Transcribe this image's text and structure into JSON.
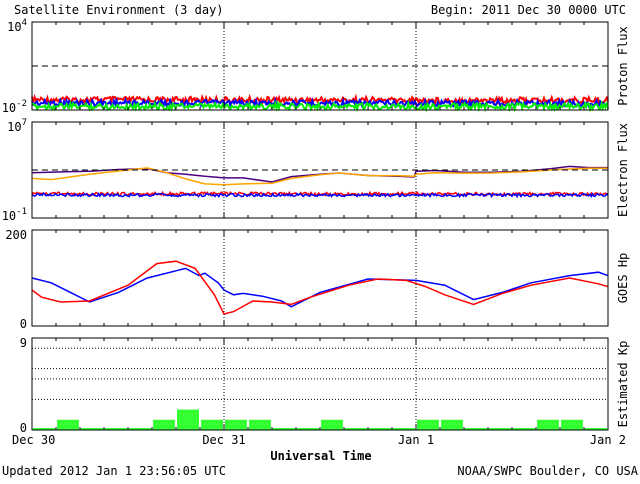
{
  "header": {
    "title": "Satellite Environment (3 day)",
    "begin": "Begin:  2011 Dec 30 0000 UTC"
  },
  "footer": {
    "updated": "Updated 2012 Jan  1 23:56:05 UTC",
    "credit": "NOAA/SWPC Boulder, CO USA"
  },
  "x_axis": {
    "label": "Universal Time",
    "days": 3,
    "ticks": [
      {
        "day": 0,
        "label": "Dec 30"
      },
      {
        "day": 1,
        "label": "Dec 31"
      },
      {
        "day": 2,
        "label": "Jan 1"
      },
      {
        "day": 3,
        "label": "Jan 2"
      }
    ]
  },
  "colors": {
    "red": "#ff0000",
    "blue": "#0000ff",
    "green": "#00ee00",
    "purple": "#4b0082",
    "orange": "#ffa500",
    "kp": "#33ff33"
  },
  "chart_data": [
    {
      "type": "line",
      "ylabel": "Proton Flux",
      "scale": "log",
      "ylim": [
        0.01,
        10000
      ],
      "ticks": [
        {
          "value": 10000,
          "label": "10",
          "exp": "4"
        },
        {
          "value": 0.01,
          "label": "10",
          "exp": "-2"
        }
      ],
      "threshold": 10,
      "series": [
        {
          "color": "red",
          "x": [
            0,
            0.5,
            1,
            1.5,
            2,
            2.5,
            3
          ],
          "y": [
            0.05,
            0.05,
            0.048,
            0.048,
            0.047,
            0.046,
            0.046
          ]
        },
        {
          "color": "blue",
          "x": [
            0,
            0.5,
            1,
            1.5,
            2,
            2.5,
            3
          ],
          "y": [
            0.03,
            0.03,
            0.03,
            0.029,
            0.029,
            0.029,
            0.028
          ]
        },
        {
          "color": "green",
          "x": [
            0,
            0.5,
            1,
            1.5,
            2,
            2.5,
            3
          ],
          "y": [
            0.018,
            0.018,
            0.018,
            0.018,
            0.018,
            0.018,
            0.018
          ]
        }
      ]
    },
    {
      "type": "line",
      "ylabel": "Electron Flux",
      "scale": "log",
      "ylim": [
        0.1,
        10000000
      ],
      "ticks": [
        {
          "value": 10000000,
          "label": "10",
          "exp": "7"
        },
        {
          "value": 0.1,
          "label": "10",
          "exp": "-1"
        }
      ],
      "threshold": 1000,
      "series": [
        {
          "color": "purple",
          "x": [
            0,
            0.15,
            0.3,
            0.45,
            0.6,
            0.7,
            0.8,
            0.9,
            1.0,
            1.1,
            1.25,
            1.35,
            1.5,
            1.6,
            1.75,
            1.9,
            1.99,
            2.0,
            2.1,
            2.25,
            2.4,
            2.55,
            2.7,
            2.8,
            2.9,
            3.0
          ],
          "y": [
            600,
            700,
            800,
            1100,
            1300,
            600,
            450,
            300,
            220,
            220,
            100,
            280,
            450,
            560,
            350,
            300,
            260,
            800,
            900,
            640,
            640,
            800,
            1250,
            2000,
            1600,
            1600
          ]
        },
        {
          "color": "orange",
          "x": [
            0,
            0.1,
            0.3,
            0.5,
            0.6,
            0.7,
            0.8,
            0.9,
            1.0,
            1.1,
            1.25,
            1.35,
            1.5,
            1.6,
            1.75,
            1.9,
            1.99,
            2.0,
            2.1,
            2.25,
            2.4,
            2.55,
            2.7,
            2.8,
            2.9,
            3.0
          ],
          "y": [
            200,
            160,
            450,
            1000,
            1500,
            600,
            180,
            70,
            60,
            70,
            80,
            200,
            400,
            560,
            340,
            340,
            300,
            450,
            600,
            550,
            560,
            700,
            1000,
            1200,
            1400,
            1400
          ]
        },
        {
          "color": "red",
          "x": [
            0,
            0.5,
            1,
            1.5,
            2,
            2.5,
            3
          ],
          "y": [
            11,
            10,
            11,
            10,
            11,
            10,
            10
          ]
        },
        {
          "color": "blue",
          "x": [
            0,
            0.5,
            1,
            1.5,
            2,
            2.5,
            3
          ],
          "y": [
            9,
            8,
            8,
            8,
            8,
            8,
            8
          ]
        }
      ]
    },
    {
      "type": "line",
      "ylabel": "GOES Hp",
      "scale": "linear",
      "ylim": [
        0,
        200
      ],
      "ticks": [
        {
          "value": 200,
          "label": "200"
        },
        {
          "value": 0,
          "label": "0"
        }
      ],
      "series": [
        {
          "color": "blue",
          "x": [
            0,
            0.1,
            0.2,
            0.3,
            0.45,
            0.6,
            0.75,
            0.8,
            0.87,
            0.9,
            0.97,
            1.0,
            1.05,
            1.1,
            1.2,
            1.3,
            1.35,
            1.5,
            1.75,
            2.0,
            2.15,
            2.3,
            2.45,
            2.6,
            2.8,
            2.95,
            3.0
          ],
          "y": [
            100,
            90,
            70,
            50,
            70,
            100,
            115,
            120,
            105,
            110,
            90,
            75,
            65,
            68,
            62,
            52,
            40,
            70,
            98,
            95,
            85,
            55,
            70,
            90,
            105,
            112,
            105
          ]
        },
        {
          "color": "red",
          "x": [
            0,
            0.05,
            0.15,
            0.3,
            0.5,
            0.65,
            0.75,
            0.85,
            0.95,
            1.0,
            1.05,
            1.15,
            1.25,
            1.35,
            1.45,
            1.65,
            1.8,
            1.95,
            2.05,
            2.15,
            2.3,
            2.45,
            2.6,
            2.8,
            2.95,
            3.0
          ],
          "y": [
            75,
            60,
            50,
            52,
            85,
            130,
            135,
            120,
            65,
            25,
            30,
            52,
            50,
            45,
            60,
            85,
            98,
            95,
            82,
            65,
            45,
            68,
            85,
            100,
            88,
            82
          ]
        }
      ]
    },
    {
      "type": "bar",
      "ylabel": "Estimated Kp",
      "scale": "linear",
      "ylim": [
        0,
        9
      ],
      "ticks": [
        {
          "value": 9,
          "label": "9"
        },
        {
          "value": 0,
          "label": "0"
        }
      ],
      "gridlines": [
        3,
        5,
        6,
        8
      ],
      "bin_hours": 3,
      "values": [
        0,
        1,
        0,
        0,
        0,
        1,
        2,
        1,
        1,
        1,
        0,
        0,
        1,
        0,
        0,
        0,
        1,
        1,
        0,
        0,
        0,
        1,
        1,
        0
      ]
    }
  ]
}
